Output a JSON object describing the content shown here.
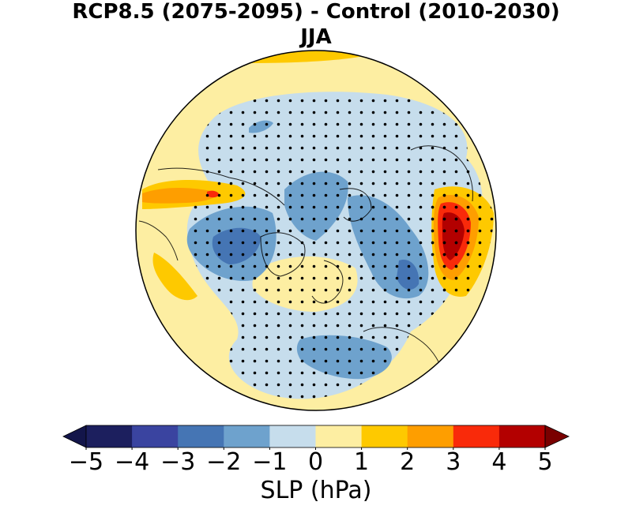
{
  "title": {
    "line1": "RCP8.5 (2075-2095) - Control (2010-2030)",
    "line2": "JJA"
  },
  "map": {
    "projection": "north-polar-stereographic",
    "variable": "SLP difference",
    "significance_stippling": true
  },
  "colorbar": {
    "label": "SLP (hPa)",
    "extend": "both",
    "ticks": [
      "−5",
      "−4",
      "−3",
      "−2",
      "−1",
      "0",
      "1",
      "2",
      "3",
      "4",
      "5"
    ],
    "levels": [
      -5,
      -4,
      -3,
      -2,
      -1,
      0,
      1,
      2,
      3,
      4,
      5
    ],
    "colors": [
      "#1c1f5e",
      "#3a44a0",
      "#4575b4",
      "#6ea2cd",
      "#c6ddec",
      "#fdeea2",
      "#fec900",
      "#fe9e00",
      "#f92a0a",
      "#b30000"
    ],
    "extend_low_color": "#13154a",
    "extend_high_color": "#7a0000"
  }
}
